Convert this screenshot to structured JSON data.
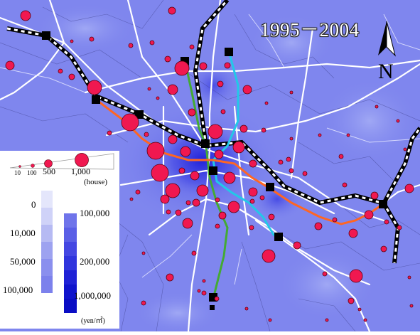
{
  "map": {
    "title": "1995－2004",
    "north_label": "N",
    "colors": {
      "background": "#7f86ee",
      "circle_fill": "#f01850",
      "circle_stroke": "#5a0010",
      "rail_jr": "#ffffff",
      "subway_green": "#44aa33",
      "subway_cyan": "#22c8e8",
      "subway_orange": "#ff6622",
      "station": "#000000"
    }
  },
  "legend": {
    "size_title": "(house)",
    "size_labels": [
      "10",
      "100",
      "500",
      "1,000"
    ],
    "land_price_left": [
      "0",
      "10,000",
      "50,000",
      "100,000"
    ],
    "land_price_right": [
      "100,000",
      "200,000",
      "1,000,000"
    ],
    "unit": "(yen/㎡)",
    "left_scale_colors": [
      "#e4e6fb",
      "#cfd2f8",
      "#b6baf3",
      "#9da2f0",
      "#8a8fee",
      "#7c81ec"
    ],
    "right_scale_colors": [
      "#6f74ea",
      "#5a5fe6",
      "#4447e2",
      "#3035dd",
      "#1f22d6",
      "#1014cc",
      "#0a0dc4"
    ]
  }
}
